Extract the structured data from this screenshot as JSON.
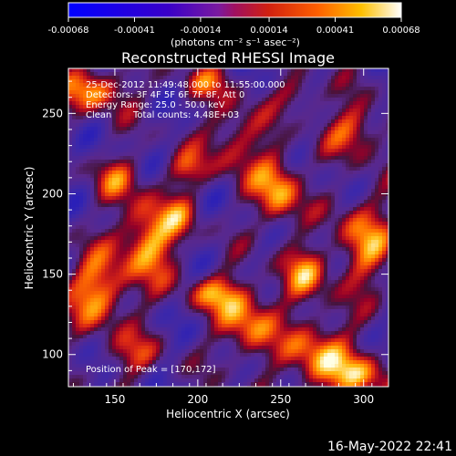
{
  "chart_data": {
    "type": "heatmap",
    "title": "Reconstructed RHESSI Image",
    "colorbar": {
      "ticks": [
        "-0.00068",
        "-0.00041",
        "-0.00014",
        "0.00014",
        "0.00041",
        "0.00068"
      ],
      "unit_label": "(photons cm⁻² s⁻¹ asec⁻²)",
      "range": [
        -0.00068,
        0.00068
      ]
    },
    "xlabel": "Heliocentric X (arcsec)",
    "ylabel": "Heliocentric Y (arcsec)",
    "xlim": [
      122,
      315
    ],
    "ylim": [
      80,
      278
    ],
    "xticks": [
      150,
      200,
      250,
      300
    ],
    "yticks": [
      100,
      150,
      200,
      250
    ],
    "annotations": [
      "25-Dec-2012 11:49:48.000 to 11:55:00.000",
      "Detectors: 3F 4F 5F 6F 7F 8F, Att 0",
      "Energy Range: 25.0 - 50.0 keV",
      "Clean",
      "Total counts: 4.48E+03"
    ],
    "peak_label": "Position of Peak = [170,172]",
    "peak": [
      170,
      172
    ],
    "sources": [
      {
        "x": 170,
        "y": 172,
        "rx": 12,
        "ry": 18,
        "level": 1.0
      },
      {
        "x": 248,
        "y": 203,
        "rx": 10,
        "ry": 16,
        "level": 0.95
      },
      {
        "x": 140,
        "y": 140,
        "rx": 13,
        "ry": 16,
        "level": 0.92
      },
      {
        "x": 138,
        "y": 265,
        "rx": 14,
        "ry": 10,
        "level": 0.85
      },
      {
        "x": 230,
        "y": 120,
        "rx": 12,
        "ry": 16,
        "level": 0.85
      },
      {
        "x": 272,
        "y": 100,
        "rx": 14,
        "ry": 16,
        "level": 0.85
      },
      {
        "x": 210,
        "y": 138,
        "rx": 12,
        "ry": 8,
        "level": 0.7
      },
      {
        "x": 265,
        "y": 150,
        "rx": 10,
        "ry": 12,
        "level": 0.75
      },
      {
        "x": 300,
        "y": 170,
        "rx": 12,
        "ry": 20,
        "level": 0.8
      },
      {
        "x": 295,
        "y": 240,
        "rx": 12,
        "ry": 12,
        "level": 0.7
      },
      {
        "x": 222,
        "y": 235,
        "rx": 12,
        "ry": 16,
        "level": 0.6
      },
      {
        "x": 195,
        "y": 215,
        "rx": 10,
        "ry": 8,
        "level": 0.55
      },
      {
        "x": 150,
        "y": 210,
        "rx": 10,
        "ry": 10,
        "level": 0.55
      },
      {
        "x": 205,
        "y": 270,
        "rx": 12,
        "ry": 8,
        "level": 0.5
      },
      {
        "x": 300,
        "y": 88,
        "rx": 14,
        "ry": 10,
        "level": 0.75
      },
      {
        "x": 160,
        "y": 100,
        "rx": 12,
        "ry": 10,
        "level": 0.5
      },
      {
        "x": 190,
        "y": 185,
        "rx": 8,
        "ry": 10,
        "level": 0.45
      },
      {
        "x": 262,
        "y": 262,
        "rx": 10,
        "ry": 8,
        "level": 0.5
      }
    ],
    "grid": false
  },
  "footer": {
    "date": "16-May-2022 22:41"
  }
}
